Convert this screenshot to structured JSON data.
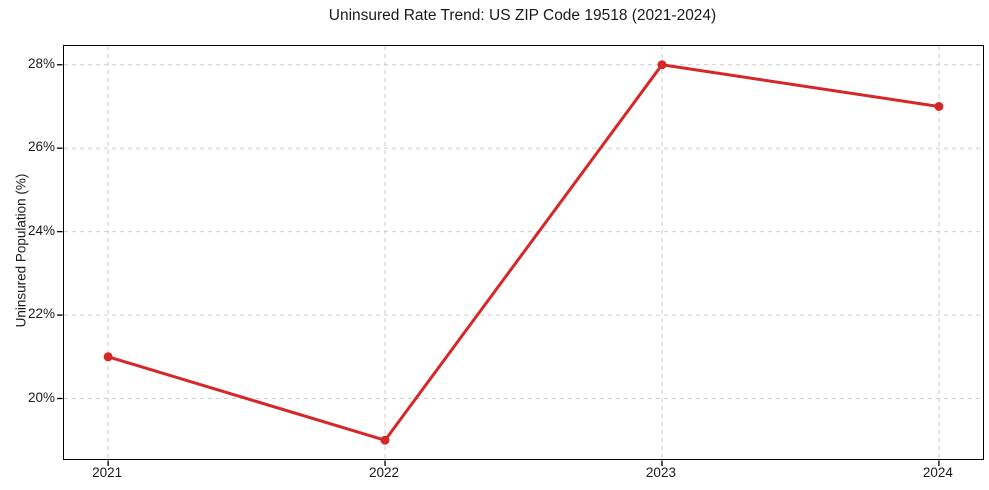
{
  "chart_data": {
    "type": "line",
    "title": "Uninsured Rate Trend: US ZIP Code 19518 (2021-2024)",
    "ylabel": "Uninsured Population (%)",
    "xlabel": "",
    "categories": [
      "2021",
      "2022",
      "2023",
      "2024"
    ],
    "series": [
      {
        "name": "Uninsured Rate",
        "values": [
          21,
          19,
          28,
          27
        ]
      }
    ],
    "unit": "%",
    "ylim": [
      18.55,
      28.45
    ],
    "yticks": [
      20,
      22,
      24,
      26,
      28
    ],
    "ytick_labels": [
      "20%",
      "22%",
      "24%",
      "26%",
      "28%"
    ],
    "grid": true,
    "grid_style": "dashed",
    "legend_position": "none",
    "colors": {
      "line": "#d62728",
      "marker": "#d62728",
      "grid": "#cccccc",
      "axis": "#000000",
      "text": "#1a1a1a",
      "background": "#ffffff"
    }
  }
}
